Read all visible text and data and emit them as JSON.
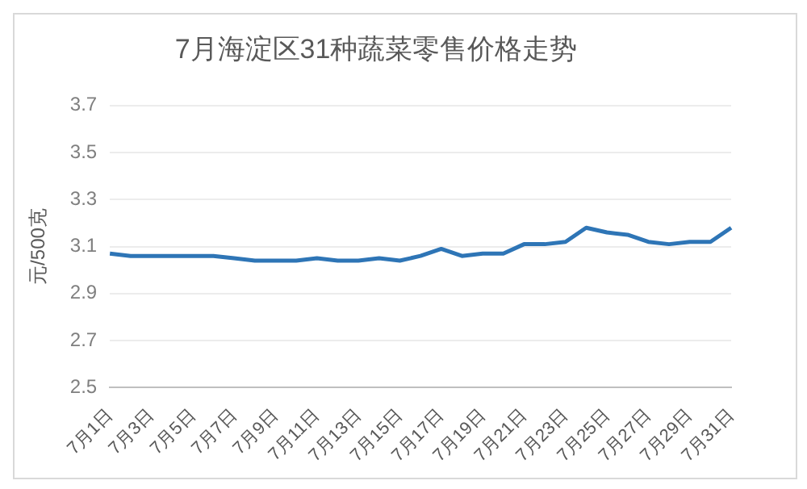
{
  "chart_data": {
    "type": "line",
    "title": "7月海淀区31种蔬菜零售价格走势",
    "ylabel": "元/500克",
    "categories": [
      "7月1日",
      null,
      "7月3日",
      null,
      "7月5日",
      null,
      "7月7日",
      null,
      "7月9日",
      null,
      "7月11日",
      null,
      "7月13日",
      null,
      "7月15日",
      null,
      "7月17日",
      null,
      "7月19日",
      null,
      "7月21日",
      null,
      "7月23日",
      null,
      "7月25日",
      null,
      "7月27日",
      null,
      "7月29日",
      null,
      "7月31日"
    ],
    "series": [
      {
        "color": "#2e75b6",
        "values": [
          3.07,
          3.06,
          3.06,
          3.06,
          3.06,
          3.06,
          3.05,
          3.04,
          3.04,
          3.04,
          3.05,
          3.04,
          3.04,
          3.05,
          3.04,
          3.06,
          3.09,
          3.06,
          3.07,
          3.07,
          3.11,
          3.11,
          3.12,
          3.18,
          3.16,
          3.15,
          3.12,
          3.11,
          3.12,
          3.12,
          3.18
        ]
      }
    ],
    "ylim": [
      2.5,
      3.7
    ],
    "yticks": [
      2.5,
      2.7,
      2.9,
      3.1,
      3.3,
      3.5,
      3.7
    ],
    "grid": "y",
    "legend": false,
    "marker": "none",
    "line_style": "solid"
  }
}
